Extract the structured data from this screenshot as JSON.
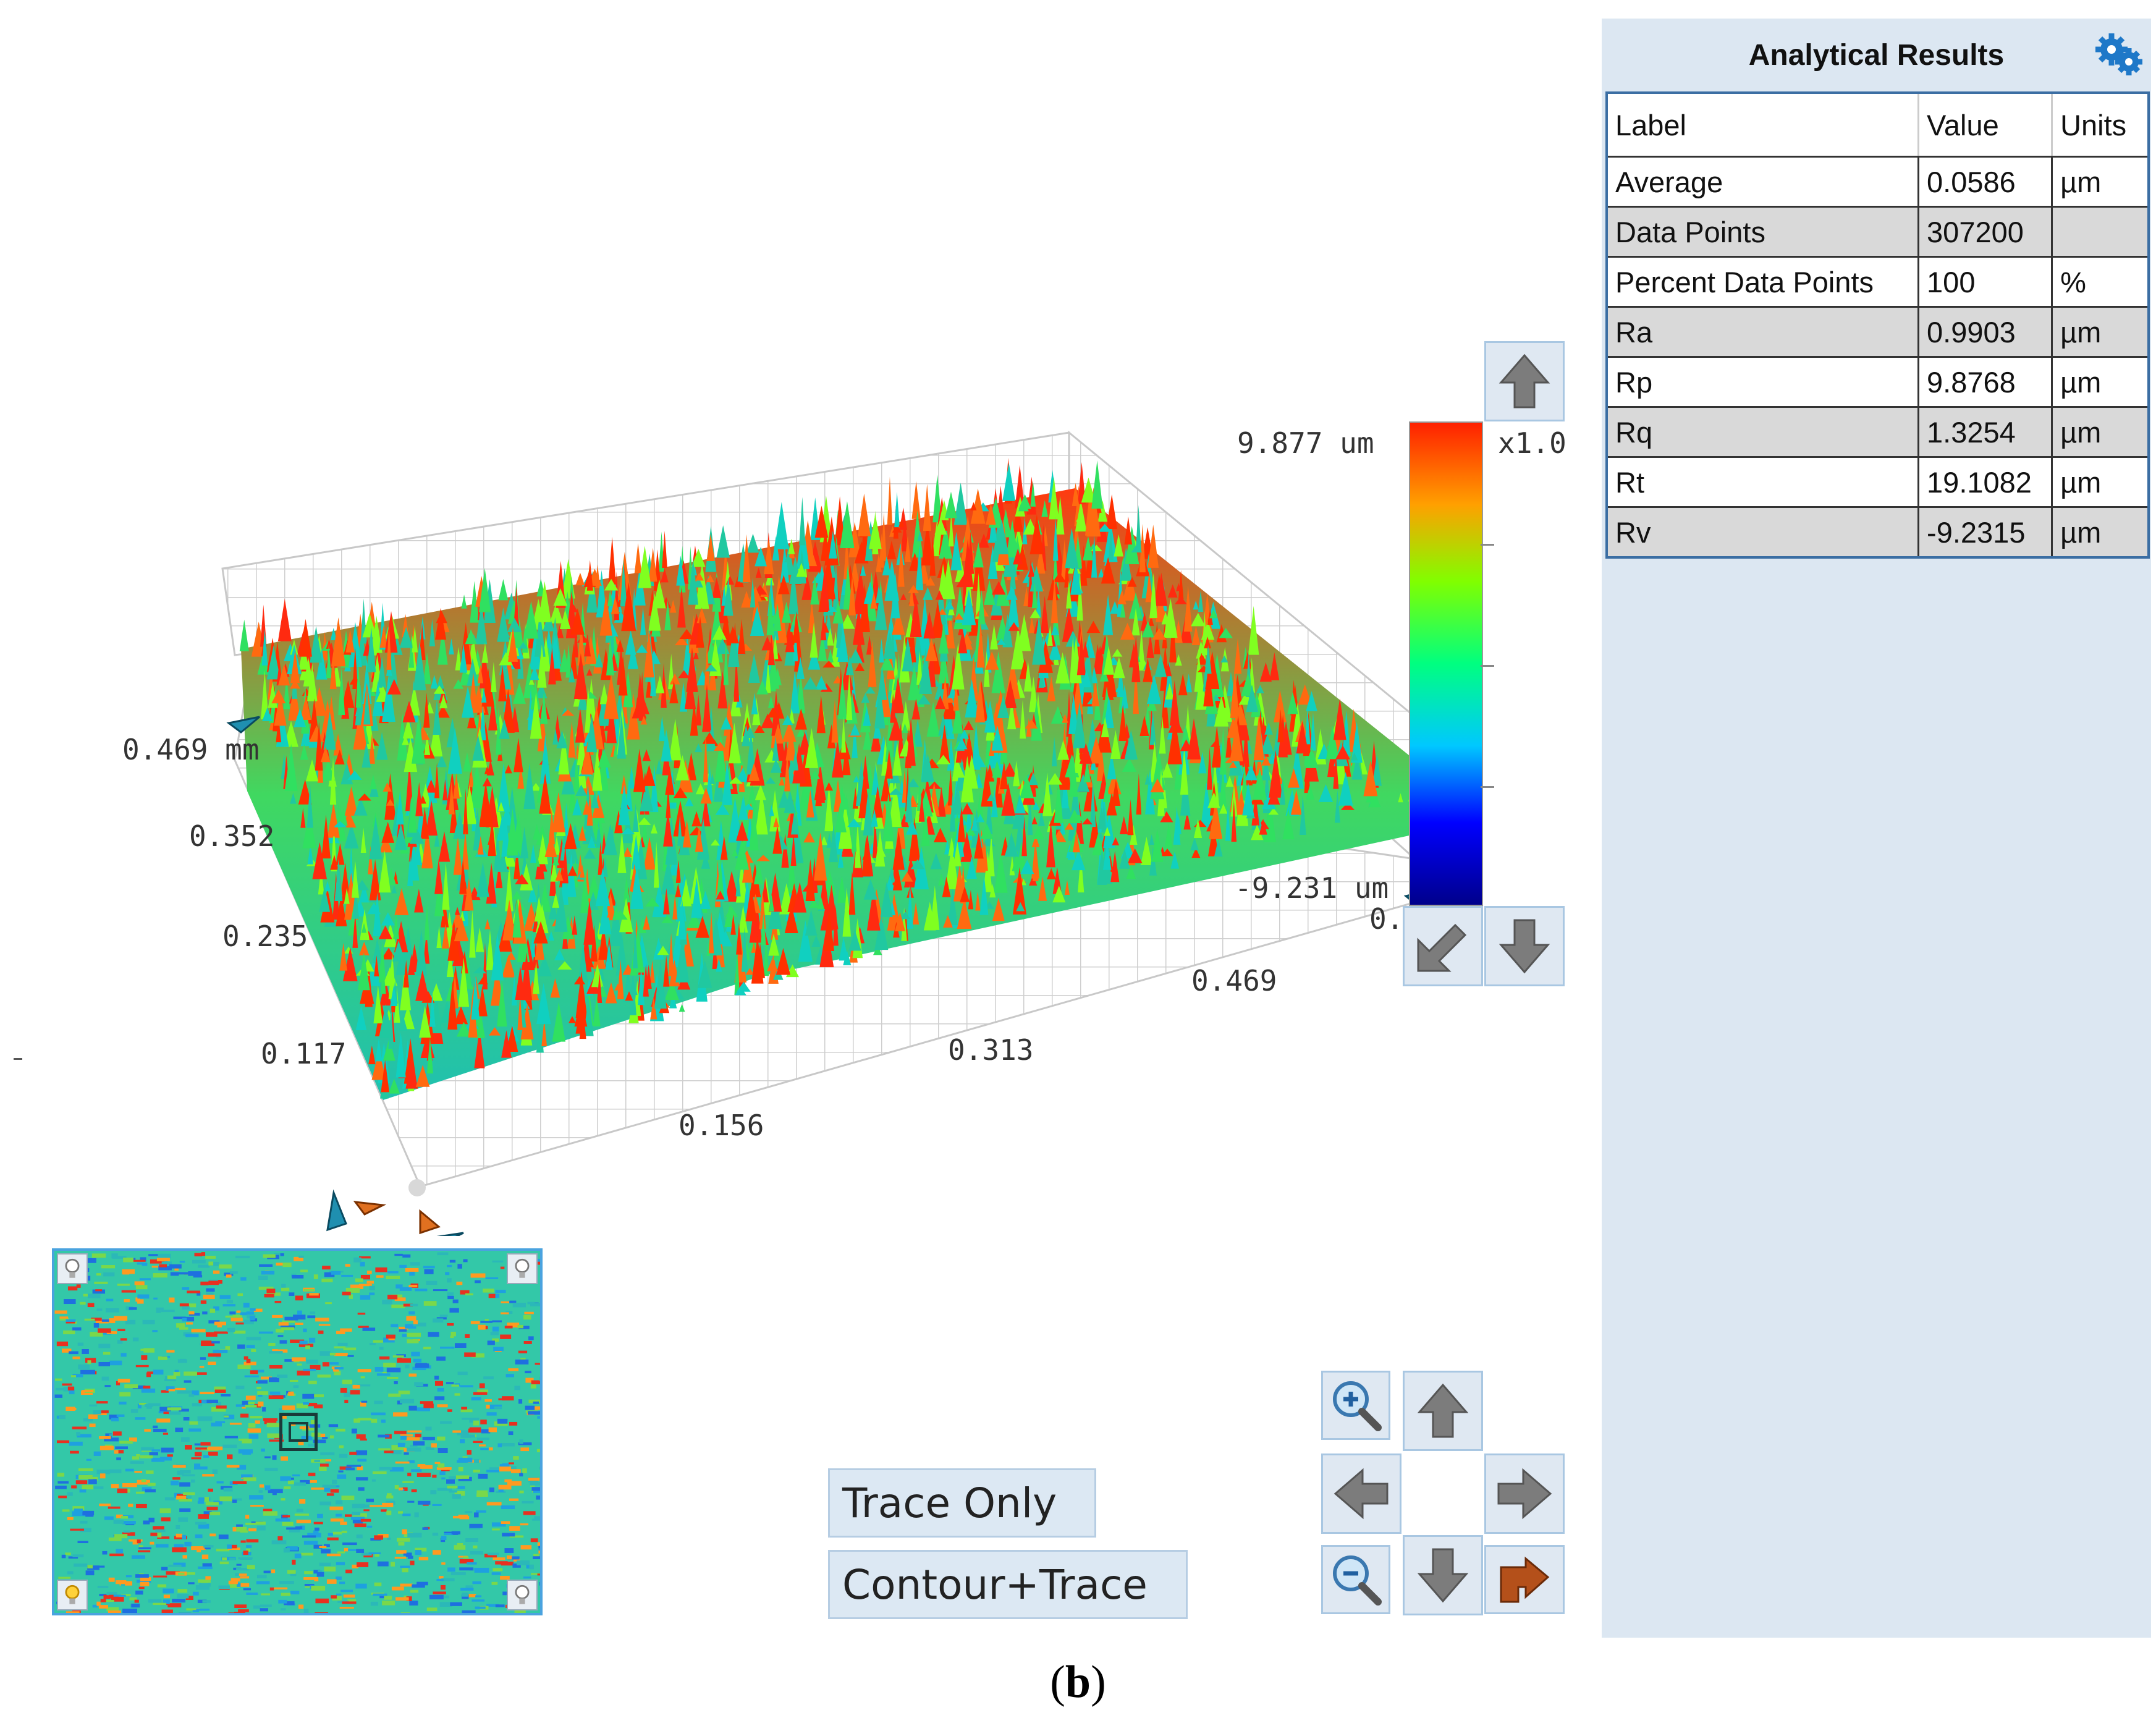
{
  "view3d": {
    "x_ticks": [
      "0.156",
      "0.313",
      "0.469"
    ],
    "y_ticks": [
      "0.469 mm",
      "0.352",
      "0.235",
      "0.117"
    ],
    "colorbar": {
      "max_label": "9.877 um",
      "min_label": "-9.231 um",
      "scale_label": "x1.0",
      "cut_label": "0."
    },
    "colors": [
      "#00008b",
      "#0000ff",
      "#00c8ff",
      "#00ff80",
      "#80ff00",
      "#ffa000",
      "#ff2000"
    ]
  },
  "panel": {
    "title": "Analytical Results",
    "settings_icon": "gears-icon",
    "columns": [
      "Label",
      "Value",
      "Units"
    ],
    "rows": [
      {
        "label": "Average",
        "value": "0.0586",
        "units": "µm"
      },
      {
        "label": "Data Points",
        "value": "307200",
        "units": ""
      },
      {
        "label": "Percent Data Points",
        "value": "100",
        "units": "%"
      },
      {
        "label": "Ra",
        "value": "0.9903",
        "units": "µm"
      },
      {
        "label": "Rp",
        "value": "9.8768",
        "units": "µm"
      },
      {
        "label": "Rq",
        "value": "1.3254",
        "units": "µm"
      },
      {
        "label": "Rt",
        "value": "19.1082",
        "units": "µm"
      },
      {
        "label": "Rv",
        "value": "-9.2315",
        "units": "µm"
      }
    ]
  },
  "buttons": {
    "trace_only": "Trace Only",
    "contour_trace": "Contour+Trace"
  },
  "nav_icons": [
    "zoom-in-icon",
    "arrow-up-icon",
    "arrow-left-icon",
    "arrow-right-icon",
    "zoom-out-icon",
    "arrow-down-icon",
    "rotate-icon"
  ],
  "caption": {
    "open": "(",
    "letter": "b",
    "close": ")"
  }
}
